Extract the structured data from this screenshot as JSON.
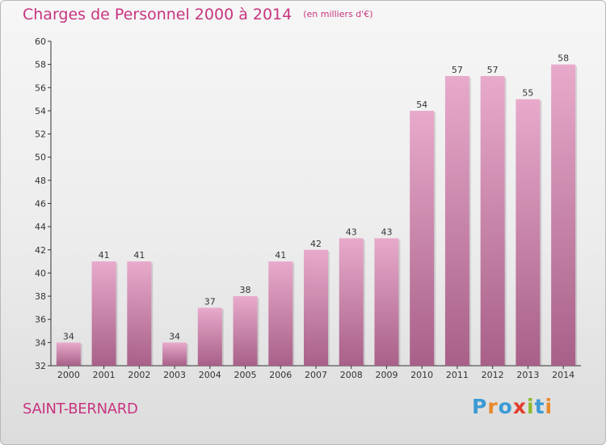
{
  "title": "Charges de Personnel 2000 à 2014",
  "subtitle": "(en milliers d'€)",
  "place_name": "SAINT-BERNARD",
  "logo": {
    "text": "Proxiti",
    "letters": [
      {
        "ch": "P",
        "color": "#3b9bd4"
      },
      {
        "ch": "r",
        "color": "#e8892b"
      },
      {
        "ch": "o",
        "color": "#3b9bd4"
      },
      {
        "ch": "x",
        "color": "#e23d2d"
      },
      {
        "ch": "i",
        "color": "#8dbb2f"
      },
      {
        "ch": "t",
        "color": "#3b9bd4"
      },
      {
        "ch": "i",
        "color": "#e8892b"
      }
    ]
  },
  "colors": {
    "accent": "#c8357f",
    "bar_light": "#e8aacb",
    "bar_dark": "#a86088",
    "axis": "#333333"
  },
  "chart_data": {
    "type": "bar",
    "categories": [
      "2000",
      "2001",
      "2002",
      "2003",
      "2004",
      "2005",
      "2006",
      "2007",
      "2008",
      "2009",
      "2010",
      "2011",
      "2012",
      "2013",
      "2014"
    ],
    "values": [
      34,
      41,
      41,
      34,
      37,
      38,
      41,
      42,
      43,
      43,
      54,
      57,
      57,
      55,
      58
    ],
    "title": "Charges de Personnel 2000 à 2014",
    "subtitle": "(en milliers d'€)",
    "xlabel": "",
    "ylabel": "",
    "ylim": [
      32,
      60
    ],
    "yticks": [
      32,
      34,
      36,
      38,
      40,
      42,
      44,
      46,
      48,
      50,
      52,
      54,
      56,
      58,
      60
    ],
    "grid": false,
    "legend": "none"
  }
}
